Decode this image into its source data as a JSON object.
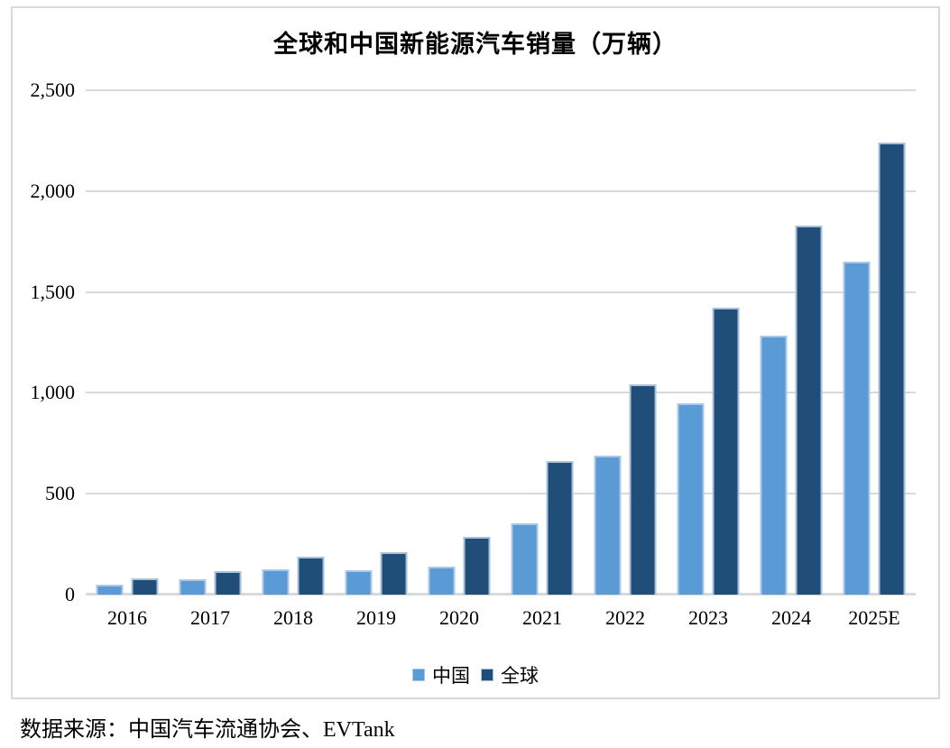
{
  "source_note": "数据来源：中国汽车流通协会、EVTank",
  "colors": {
    "frame_border": "#d9d9d9",
    "gridline": "#d9d9d9",
    "axis_line": "#d9d9d9",
    "background": "#ffffff",
    "text": "#000000"
  },
  "chart_data": {
    "type": "bar",
    "title": "全球和中国新能源汽车销量（万辆）",
    "xlabel": "",
    "ylabel": "",
    "categories": [
      "2016",
      "2017",
      "2018",
      "2019",
      "2020",
      "2021",
      "2022",
      "2023",
      "2024",
      "2025E"
    ],
    "series": [
      {
        "name": "中国",
        "color": "#5b9bd5",
        "border": "#a9c7e8",
        "values": [
          51,
          78,
          126,
          121,
          137,
          352,
          690,
          950,
          1285,
          1650
        ]
      },
      {
        "name": "全球",
        "color": "#1f4e79",
        "border": "#a9c0dc",
        "values": [
          80,
          117,
          186,
          211,
          288,
          660,
          1040,
          1423,
          1828,
          2240
        ]
      }
    ],
    "ylim": [
      0,
      2500
    ],
    "yticks": [
      "0",
      "500",
      "1,000",
      "1,500",
      "2,000",
      "2,500"
    ],
    "grid": true,
    "legend_position": "bottom"
  }
}
